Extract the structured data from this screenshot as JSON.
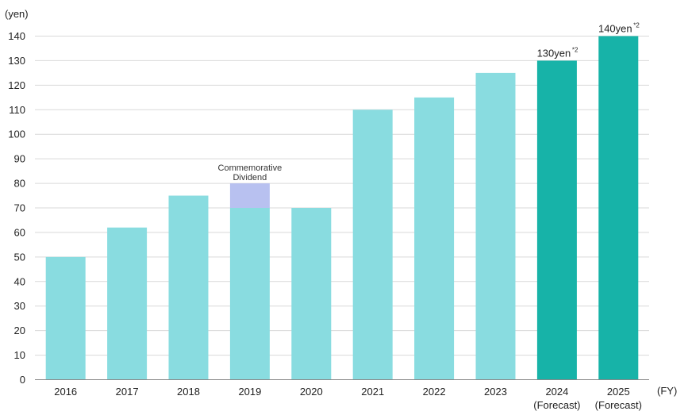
{
  "chart_data": {
    "type": "bar",
    "title": "",
    "ylabel": "(yen)",
    "xlabel": "(FY)",
    "ylim": [
      0,
      140
    ],
    "yticks": [
      0,
      10,
      20,
      30,
      40,
      50,
      60,
      70,
      80,
      90,
      100,
      110,
      120,
      130,
      140
    ],
    "grid": true,
    "categories": [
      {
        "year": "2016",
        "sub": ""
      },
      {
        "year": "2017",
        "sub": ""
      },
      {
        "year": "2018",
        "sub": ""
      },
      {
        "year": "2019",
        "sub": ""
      },
      {
        "year": "2020",
        "sub": ""
      },
      {
        "year": "2021",
        "sub": ""
      },
      {
        "year": "2022",
        "sub": ""
      },
      {
        "year": "2023",
        "sub": ""
      },
      {
        "year": "2024",
        "sub": "(Forecast)"
      },
      {
        "year": "2025",
        "sub": "(Forecast)"
      }
    ],
    "series": [
      {
        "values": [
          50,
          62,
          75,
          70,
          70,
          110,
          115,
          125,
          130,
          140
        ]
      },
      {
        "values": [
          0,
          0,
          0,
          10,
          0,
          0,
          0,
          0,
          0,
          0
        ]
      }
    ],
    "bar_annotation": {
      "category_index": 3,
      "lines": [
        "Commemorative",
        "Dividend"
      ]
    },
    "data_labels": [
      {
        "category_index": 8,
        "text": "130yen",
        "sup": "*2"
      },
      {
        "category_index": 9,
        "text": "140yen",
        "sup": "*2"
      }
    ],
    "colors": {
      "actual": "#89dce0",
      "forecast": "#17b3a8",
      "commemorative": "#b8c1f0",
      "grid": "#d9d9d9",
      "axis": "#888888"
    }
  }
}
